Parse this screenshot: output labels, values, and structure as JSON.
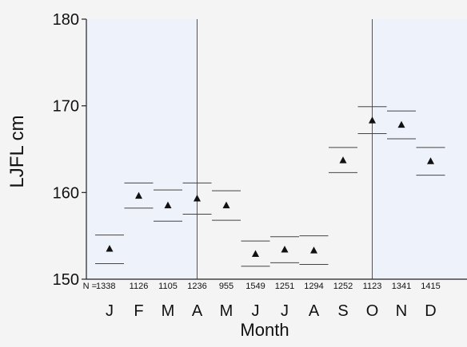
{
  "chart_data": {
    "type": "scatter",
    "title": "",
    "xlabel": "Month",
    "ylabel": "LJFL cm",
    "ylim": [
      150,
      180
    ],
    "yticks": [
      150,
      160,
      170,
      180
    ],
    "categories": [
      "J",
      "F",
      "M",
      "A",
      "M",
      "J",
      "J",
      "A",
      "S",
      "O",
      "N",
      "D"
    ],
    "n_prefix": "N =",
    "n_values": [
      "1338",
      "1126",
      "1105",
      "1236",
      "955",
      "1549",
      "1251",
      "1294",
      "1252",
      "1123",
      "1341",
      "1415"
    ],
    "series": [
      {
        "mean": [
          153.5,
          159.6,
          158.5,
          159.3,
          158.5,
          152.9,
          153.4,
          153.3,
          163.7,
          168.3,
          167.8,
          163.6
        ],
        "upper": [
          155.1,
          161.1,
          160.3,
          161.1,
          160.2,
          154.4,
          154.9,
          155.0,
          165.2,
          169.9,
          169.4,
          165.2
        ],
        "lower": [
          151.8,
          158.2,
          156.7,
          157.5,
          156.8,
          151.5,
          151.9,
          151.7,
          162.3,
          166.8,
          166.2,
          162.0
        ]
      }
    ],
    "shaded_month_ranges": [
      [
        0,
        3
      ],
      [
        9,
        11
      ]
    ],
    "vertical_lines_at_months": [
      3,
      9
    ],
    "grid": false,
    "colors": {
      "shade": "#eef2fb",
      "marker": "#111111",
      "axis": "#222222"
    }
  }
}
